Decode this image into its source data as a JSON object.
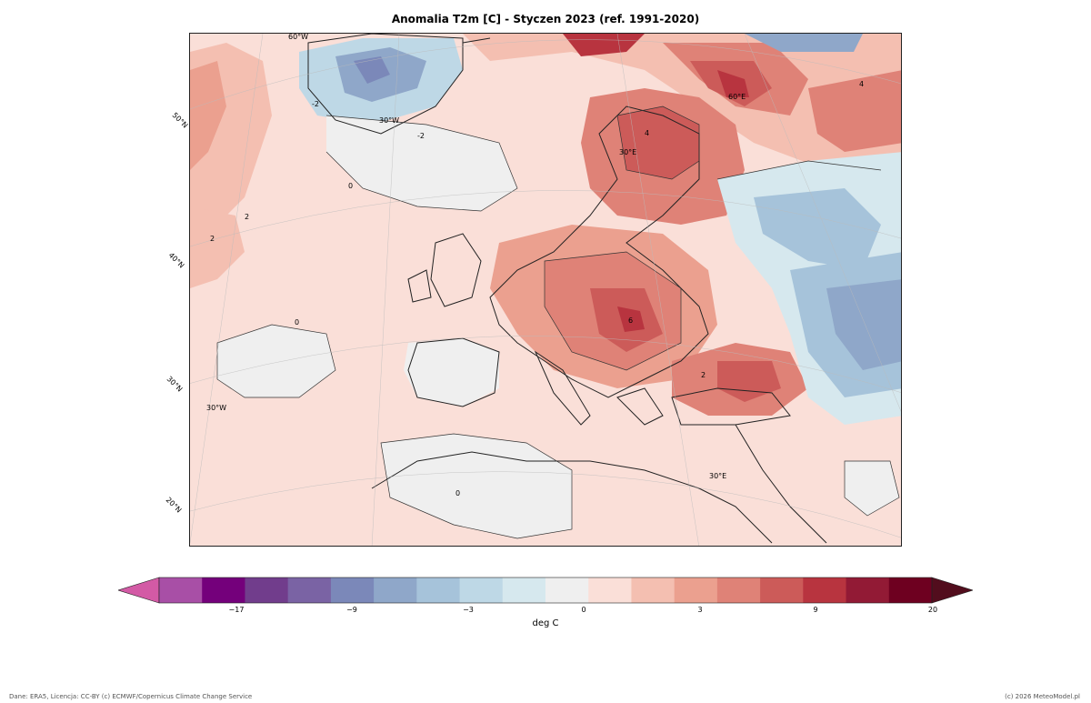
{
  "title": "Anomalia T2m [C] - Styczen 2023  (ref. 1991-2020)",
  "map": {
    "lat_labels": [
      "50°N",
      "40°N",
      "30°N",
      "20°N"
    ],
    "lon_labels": [
      "60°W",
      "30°W",
      "30°E",
      "60°E",
      "30°W",
      "30°E"
    ],
    "contour_labels": [
      "0",
      "0",
      "0",
      "2",
      "2",
      "2",
      "4",
      "4",
      "6",
      "-2",
      "-2"
    ]
  },
  "colorbar": {
    "unit_label": "deg C",
    "tick_labels": [
      "−17",
      "−9",
      "−3",
      "0",
      "3",
      "9",
      "20"
    ],
    "colors": [
      "#d35aa5",
      "#a84fa6",
      "#74007b",
      "#713d8c",
      "#7a63a4",
      "#7b88b9",
      "#8fa7c9",
      "#a6c3da",
      "#bed8e6",
      "#d6e8ee",
      "#efefef",
      "#fadfd8",
      "#f4bfb1",
      "#eba08f",
      "#df8277",
      "#cc5b59",
      "#b8343f",
      "#921a35",
      "#6e0020",
      "#520d1d"
    ]
  },
  "footer": {
    "left": "Dane: ERA5, Licencja: CC-BY (c) ECMWF/Copernicus Climate Change Service",
    "right": "(c) 2026 MeteoModel.pl"
  }
}
